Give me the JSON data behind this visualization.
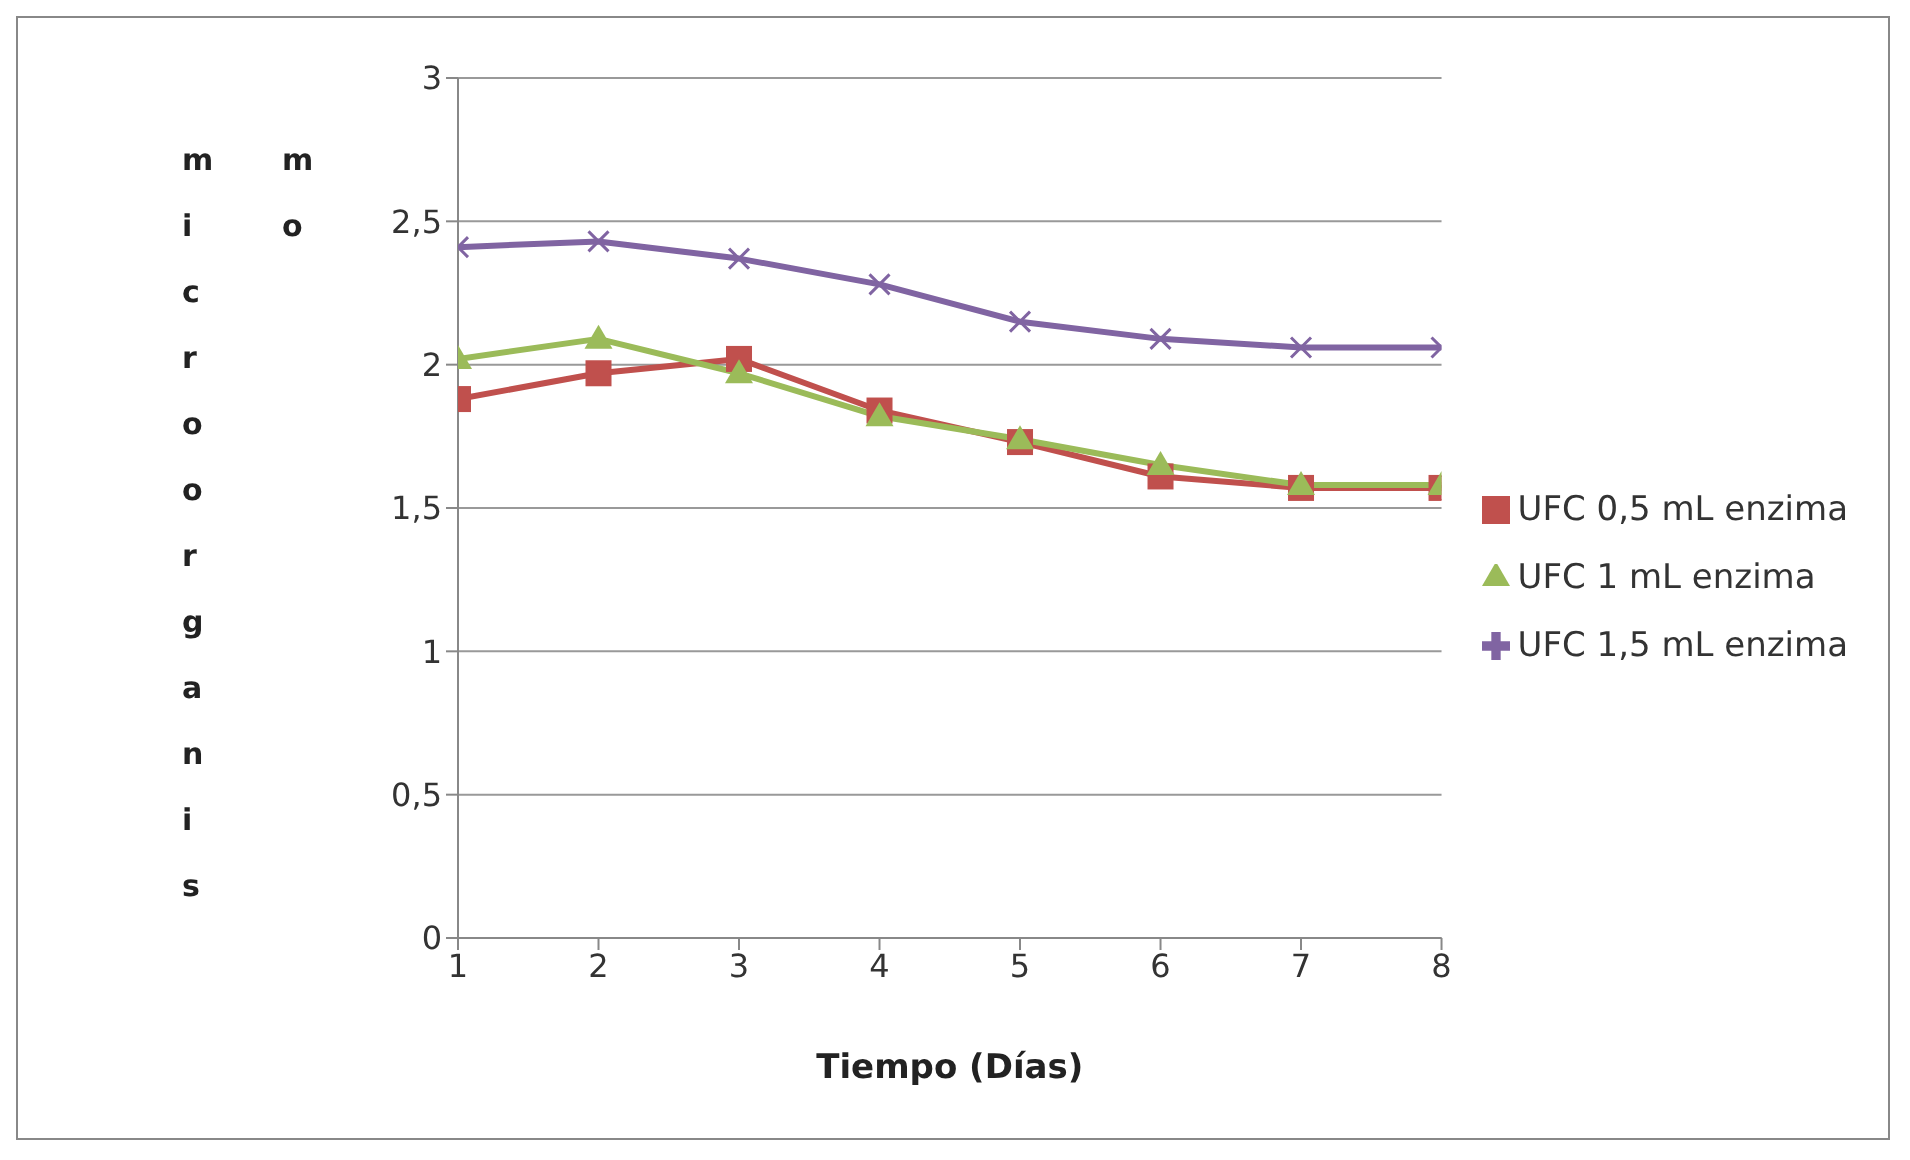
{
  "chart_data": {
    "type": "line",
    "xlabel": "Tiempo (Días)",
    "ylabel": "microorganismo",
    "x": [
      1,
      2,
      3,
      4,
      5,
      6,
      7,
      8
    ],
    "xlim": [
      1,
      8
    ],
    "xticks": [
      1,
      2,
      3,
      4,
      5,
      6,
      7,
      8
    ],
    "ylim": [
      0,
      3
    ],
    "yticks": [
      0,
      {
        "value": 0.5,
        "label": "0,5"
      },
      1,
      {
        "value": 1.5,
        "label": "1,5"
      },
      2,
      {
        "value": 2.5,
        "label": "2,5"
      },
      3
    ],
    "grid": "y",
    "legend": "right",
    "series": [
      {
        "name": "UFC 0,5 mL enzima",
        "color": "#c0504d",
        "marker": "square",
        "values": [
          1.88,
          1.97,
          2.02,
          1.84,
          1.73,
          1.61,
          1.57,
          1.57
        ]
      },
      {
        "name": "UFC 1 mL enzima",
        "color": "#9bbb59",
        "marker": "triangle",
        "values": [
          2.02,
          2.09,
          1.97,
          1.82,
          1.74,
          1.65,
          1.58,
          1.58
        ]
      },
      {
        "name": "UFC 1,5 mL enzima",
        "color": "#8064a2",
        "marker": "cross",
        "values": [
          2.41,
          2.43,
          2.37,
          2.28,
          2.15,
          2.09,
          2.06,
          2.06
        ]
      }
    ]
  }
}
